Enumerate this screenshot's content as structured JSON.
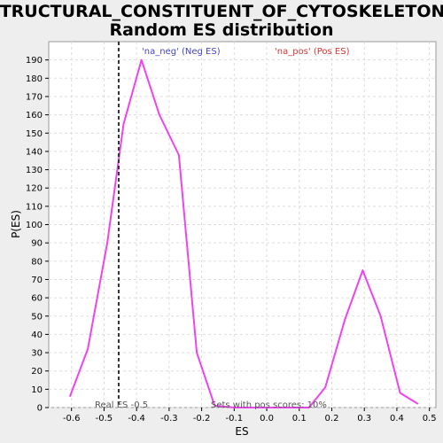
{
  "chart_data": {
    "type": "line",
    "title_line1": "STRUCTURAL_CONSTITUENT_OF_CYTOSKELETON:",
    "title_line2": "Random ES distribution",
    "xlabel": "ES",
    "ylabel": "P(ES)",
    "xlim": [
      -0.67,
      0.52
    ],
    "ylim": [
      0,
      200
    ],
    "x_ticks": [
      "-0.6",
      "-0.5",
      "-0.4",
      "-0.3",
      "-0.2",
      "-0.1",
      "0.0",
      "0.1",
      "0.2",
      "0.3",
      "0.4",
      "0.5"
    ],
    "x_tick_values": [
      -0.6,
      -0.5,
      -0.4,
      -0.3,
      -0.2,
      -0.1,
      0.0,
      0.1,
      0.2,
      0.3,
      0.4,
      0.5
    ],
    "y_ticks": [
      "0",
      "10",
      "20",
      "30",
      "40",
      "50",
      "60",
      "70",
      "80",
      "90",
      "100",
      "110",
      "120",
      "130",
      "140",
      "150",
      "160",
      "170",
      "180",
      "190"
    ],
    "y_tick_values": [
      0,
      10,
      20,
      30,
      40,
      50,
      60,
      70,
      80,
      90,
      100,
      110,
      120,
      130,
      140,
      150,
      160,
      170,
      180,
      190
    ],
    "grid": true,
    "series": [
      {
        "name": "",
        "color": "#ee44ee",
        "x": [
          -0.605,
          -0.55,
          -0.49,
          -0.44,
          -0.385,
          -0.33,
          -0.27,
          -0.215,
          -0.16,
          -0.1,
          -0.04,
          0.02,
          0.075,
          0.13,
          0.18,
          0.24,
          0.295,
          0.35,
          0.41,
          0.465
        ],
        "y": [
          6,
          32,
          90,
          155,
          190,
          160,
          138,
          30,
          1,
          0,
          0,
          0,
          0,
          0,
          11,
          48,
          75,
          50,
          8,
          2
        ]
      }
    ],
    "real_es": -0.455,
    "legend_neg": "'na_neg' (Neg ES)",
    "legend_pos": "'na_pos' (Pos ES)",
    "legend_neg_color": "#4444cc",
    "legend_pos_color": "#dd3333",
    "real_es_label": "Real ES -0.5",
    "pos_scores_label": "Sets with pos scores: 10%"
  }
}
